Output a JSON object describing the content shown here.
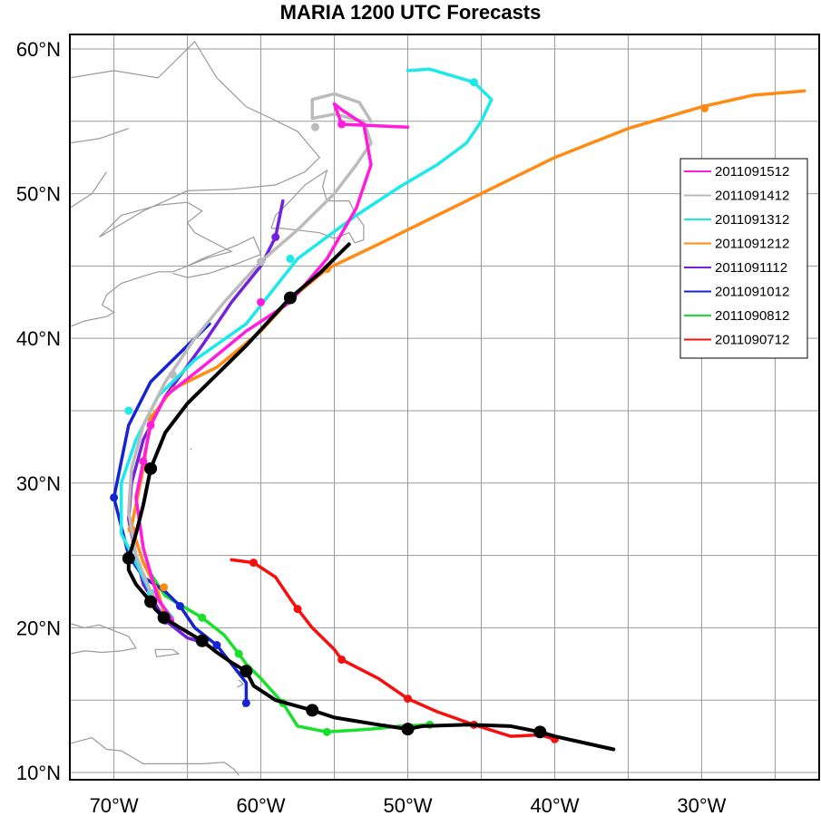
{
  "title": "MARIA 1200 UTC Forecasts",
  "x_tick_labels": [
    "70°W",
    "60°W",
    "50°W",
    "40°W",
    "30°W"
  ],
  "y_tick_labels": [
    "60°N",
    "50°N",
    "40°N",
    "30°N",
    "20°N",
    "10°N"
  ],
  "lon_ticks": [
    -70,
    -60,
    -50,
    -40,
    -30
  ],
  "lat_ticks": [
    60,
    50,
    40,
    30,
    20,
    10
  ],
  "map_extent": {
    "lon": [
      -73,
      -22
    ],
    "lat": [
      9.5,
      61
    ]
  },
  "gridline_interval_deg": 5,
  "colors": {
    "land_outline": "#9a9a9a",
    "grid": "#9a9a9a",
    "frame": "#000000"
  },
  "track": {
    "color": "#000000",
    "points": [
      [
        -36,
        11.6
      ],
      [
        -40,
        12.5
      ],
      [
        -41,
        12.8
      ],
      [
        -43,
        13.2
      ],
      [
        -46,
        13.3
      ],
      [
        -49,
        13.2
      ],
      [
        -50,
        13.0
      ],
      [
        -52,
        13.3
      ],
      [
        -55,
        13.8
      ],
      [
        -56.5,
        14.3
      ],
      [
        -59,
        15.0
      ],
      [
        -60.5,
        16.0
      ],
      [
        -61,
        17.0
      ],
      [
        -62,
        17.6
      ],
      [
        -63,
        18.3
      ],
      [
        -64,
        19.1
      ],
      [
        -65.5,
        20.0
      ],
      [
        -66.6,
        20.7
      ],
      [
        -67.2,
        21.3
      ],
      [
        -67.5,
        21.8
      ],
      [
        -68.5,
        23.0
      ],
      [
        -69,
        24.0
      ],
      [
        -69,
        24.8
      ],
      [
        -68.5,
        26.5
      ],
      [
        -68,
        28.5
      ],
      [
        -67.5,
        31.0
      ],
      [
        -66.5,
        33.5
      ],
      [
        -65,
        35.5
      ],
      [
        -63,
        37.5
      ],
      [
        -61,
        39.5
      ],
      [
        -58,
        42.8
      ],
      [
        -56,
        44.5
      ],
      [
        -54,
        46.5
      ]
    ],
    "markers": [
      [
        -41,
        12.8
      ],
      [
        -50,
        13.0
      ],
      [
        -56.5,
        14.3
      ],
      [
        -61,
        17.0
      ],
      [
        -64,
        19.1
      ],
      [
        -66.6,
        20.7
      ],
      [
        -67.5,
        21.8
      ],
      [
        -69,
        24.8
      ],
      [
        -67.5,
        31.0
      ],
      [
        -58,
        42.8
      ]
    ]
  },
  "forecasts": [
    {
      "name": "2011091512",
      "color": "#ff1cdd",
      "points": [
        [
          -66,
          20.5
        ],
        [
          -67,
          22
        ],
        [
          -68,
          25.5
        ],
        [
          -68.5,
          29
        ],
        [
          -68,
          31.5
        ],
        [
          -67.5,
          34
        ],
        [
          -66.5,
          36
        ],
        [
          -64,
          38
        ],
        [
          -61,
          40.5
        ],
        [
          -58,
          42.5
        ],
        [
          -55.5,
          45.5
        ],
        [
          -53.5,
          49
        ],
        [
          -52.5,
          52
        ],
        [
          -53,
          54.8
        ],
        [
          -54.5,
          55.8
        ],
        [
          -55,
          56.2
        ],
        [
          -54.5,
          54.8
        ],
        [
          -50,
          54.6
        ]
      ],
      "markers": [
        [
          -68,
          31.5
        ],
        [
          -67.5,
          34
        ],
        [
          -60,
          42.5
        ],
        [
          -54.5,
          54.8
        ]
      ]
    },
    {
      "name": "2011091412",
      "color": "#bbbbbb",
      "points": [
        [
          -66,
          20.6
        ],
        [
          -67.5,
          22.5
        ],
        [
          -68.5,
          25
        ],
        [
          -69,
          28
        ],
        [
          -68.8,
          31
        ],
        [
          -68,
          34
        ],
        [
          -66.5,
          37
        ],
        [
          -64.5,
          40
        ],
        [
          -62.5,
          42.5
        ],
        [
          -60,
          45.3
        ],
        [
          -57.5,
          47.5
        ],
        [
          -55,
          50
        ],
        [
          -53.5,
          52
        ],
        [
          -52.5,
          53.5
        ],
        [
          -53,
          55
        ],
        [
          -55,
          55.5
        ],
        [
          -56.5,
          55.2
        ],
        [
          -56.5,
          56.5
        ],
        [
          -55,
          56.9
        ],
        [
          -53.3,
          56.3
        ],
        [
          -52.5,
          55.0
        ]
      ],
      "markers": [
        [
          -66,
          37.5
        ],
        [
          -60,
          45.3
        ],
        [
          -56.3,
          54.6
        ]
      ]
    },
    {
      "name": "2011091312",
      "color": "#1ce9ea",
      "points": [
        [
          -66,
          20.7
        ],
        [
          -67.5,
          22.4
        ],
        [
          -68.5,
          24.5
        ],
        [
          -69.5,
          26.5
        ],
        [
          -69.5,
          30
        ],
        [
          -68.5,
          33
        ],
        [
          -67,
          36
        ],
        [
          -64.5,
          38.5
        ],
        [
          -61,
          41
        ],
        [
          -57.5,
          45.5
        ],
        [
          -53.5,
          48.5
        ],
        [
          -50.5,
          50.5
        ],
        [
          -48,
          52
        ],
        [
          -46,
          53.5
        ],
        [
          -45,
          55
        ],
        [
          -44.3,
          56.5
        ],
        [
          -45.5,
          57.7
        ],
        [
          -47.5,
          58.3
        ],
        [
          -48.5,
          58.6
        ],
        [
          -50,
          58.5
        ]
      ],
      "markers": [
        [
          -67.5,
          22.4
        ],
        [
          -69,
          35
        ],
        [
          -58,
          45.5
        ],
        [
          -45.5,
          57.7
        ]
      ]
    },
    {
      "name": "2011091212",
      "color": "#ff8b14",
      "points": [
        [
          -66.5,
          20.6
        ],
        [
          -67,
          22.5
        ],
        [
          -68,
          24.5
        ],
        [
          -68.8,
          27
        ],
        [
          -68,
          31
        ],
        [
          -67.5,
          34.5
        ],
        [
          -66,
          36.5
        ],
        [
          -63,
          38
        ],
        [
          -60,
          40.5
        ],
        [
          -58,
          42.7
        ],
        [
          -55.5,
          44.8
        ],
        [
          -52,
          46.5
        ],
        [
          -48,
          48.5
        ],
        [
          -44,
          50.5
        ],
        [
          -40,
          52.5
        ],
        [
          -35,
          54.5
        ],
        [
          -30,
          56
        ],
        [
          -26.5,
          56.8
        ],
        [
          -23,
          57.1
        ]
      ],
      "markers": [
        [
          -66.5,
          20.6
        ],
        [
          -66.6,
          22.8
        ],
        [
          -68.8,
          26.8
        ],
        [
          -67.5,
          34.5
        ],
        [
          -55.5,
          44.8
        ],
        [
          -29.8,
          55.9
        ]
      ]
    },
    {
      "name": "2011091112",
      "color": "#7221de",
      "points": [
        [
          -64,
          19.0
        ],
        [
          -65,
          19.3
        ],
        [
          -66.5,
          20.5
        ],
        [
          -68,
          23
        ],
        [
          -68.5,
          25
        ],
        [
          -69,
          27.5
        ],
        [
          -68.8,
          30
        ],
        [
          -68,
          33
        ],
        [
          -66.5,
          36
        ],
        [
          -64,
          39.5
        ],
        [
          -62,
          42.5
        ],
        [
          -60,
          45
        ],
        [
          -59,
          47
        ],
        [
          -58.5,
          49.5
        ]
      ],
      "markers": [
        [
          -64,
          19.0
        ],
        [
          -66.5,
          20.5
        ],
        [
          -59,
          47.0
        ]
      ]
    },
    {
      "name": "2011091012",
      "color": "#1523d2",
      "points": [
        [
          -61,
          14.8
        ],
        [
          -61,
          16.2
        ],
        [
          -62,
          17.5
        ],
        [
          -63,
          18.8
        ],
        [
          -64.5,
          20
        ],
        [
          -65.5,
          21.5
        ],
        [
          -66.5,
          22.5
        ],
        [
          -68,
          23.5
        ],
        [
          -69,
          25
        ],
        [
          -69.5,
          27
        ],
        [
          -70,
          29
        ],
        [
          -69.5,
          31.5
        ],
        [
          -69,
          34
        ],
        [
          -67.5,
          37
        ],
        [
          -65.5,
          39
        ],
        [
          -63.5,
          41
        ]
      ],
      "markers": [
        [
          -61,
          14.8
        ],
        [
          -63,
          18.8
        ],
        [
          -65.5,
          21.5
        ],
        [
          -70,
          29
        ]
      ]
    },
    {
      "name": "2011090812",
      "color": "#19e02c",
      "points": [
        [
          -48.5,
          13.3
        ],
        [
          -50.5,
          13.2
        ],
        [
          -52.5,
          13.0
        ],
        [
          -55.5,
          12.8
        ],
        [
          -57.5,
          13.2
        ],
        [
          -58.5,
          14.8
        ],
        [
          -60,
          16.5
        ],
        [
          -61,
          17.5
        ],
        [
          -61.5,
          18.2
        ],
        [
          -62.5,
          19.5
        ],
        [
          -64,
          20.7
        ],
        [
          -66.5,
          22.2
        ],
        [
          -68,
          24.5
        ]
      ],
      "markers": [
        [
          -48.5,
          13.3
        ],
        [
          -55.5,
          12.8
        ],
        [
          -58.5,
          14.8
        ],
        [
          -61.5,
          18.2
        ],
        [
          -64,
          20.7
        ]
      ]
    },
    {
      "name": "2011090712",
      "color": "#f5100f",
      "points": [
        [
          -62,
          24.7
        ],
        [
          -60.5,
          24.5
        ],
        [
          -59,
          23.5
        ],
        [
          -58,
          22.0
        ],
        [
          -57.5,
          21.3
        ],
        [
          -56.5,
          20
        ],
        [
          -55,
          18.5
        ],
        [
          -54.5,
          17.8
        ],
        [
          -52,
          16.5
        ],
        [
          -50,
          15.1
        ],
        [
          -48,
          14.2
        ],
        [
          -45.5,
          13.3
        ],
        [
          -43,
          12.5
        ],
        [
          -41,
          12.6
        ],
        [
          -40,
          12.3
        ]
      ],
      "markers": [
        [
          -60.5,
          24.5
        ],
        [
          -57.5,
          21.3
        ],
        [
          -54.5,
          17.8
        ],
        [
          -50,
          15.1
        ],
        [
          -45.5,
          13.3
        ],
        [
          -40,
          12.3
        ]
      ]
    }
  ]
}
